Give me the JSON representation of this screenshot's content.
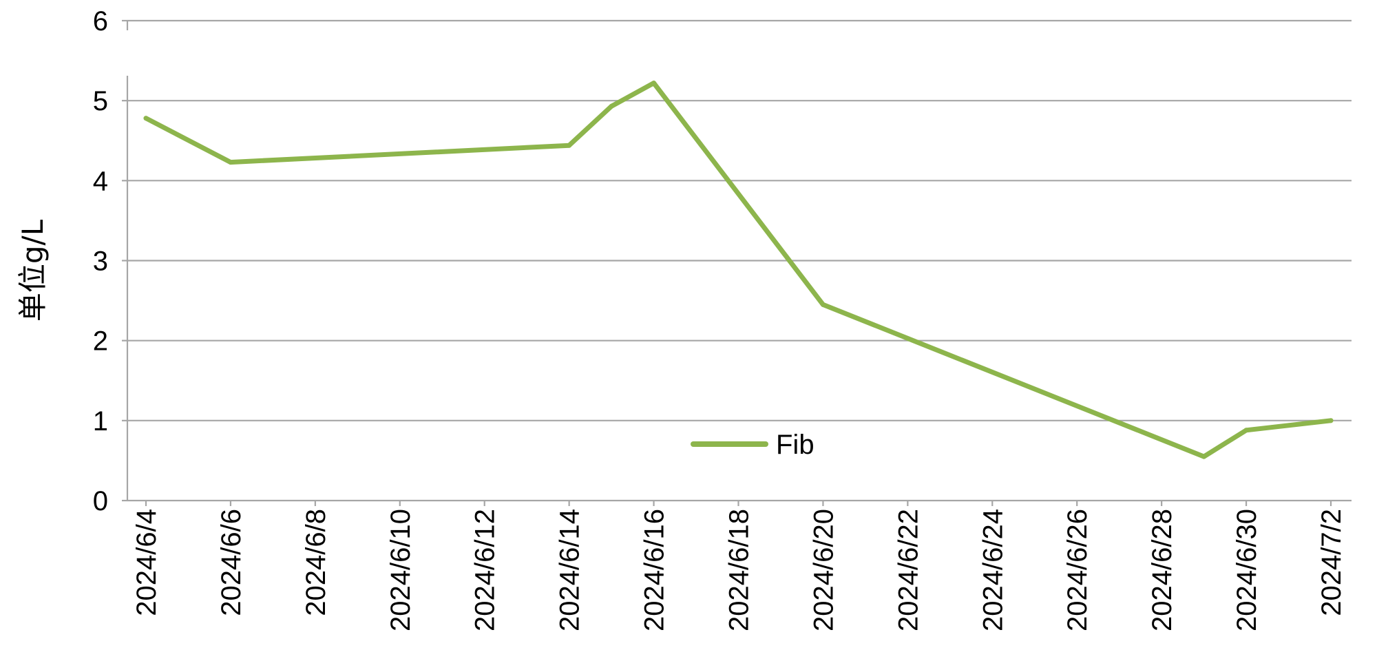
{
  "chart_data": {
    "type": "line",
    "ylabel": "单位g/L",
    "xlabel": "",
    "ylim": [
      0,
      6
    ],
    "y_ticks": [
      "0",
      "1",
      "2",
      "3",
      "4",
      "5",
      "6"
    ],
    "x_ticks": [
      "2024/6/4",
      "2024/6/6",
      "2024/6/8",
      "2024/6/10",
      "2024/6/12",
      "2024/6/14",
      "2024/6/16",
      "2024/6/18",
      "2024/6/20",
      "2024/6/22",
      "2024/6/24",
      "2024/6/26",
      "2024/6/28",
      "2024/6/30",
      "2024/7/2"
    ],
    "xlim": [
      "2024/6/4",
      "2024/7/2"
    ],
    "grid": "horizontal",
    "legend_position": "bottom-center",
    "series": [
      {
        "name": "Fib",
        "color": "#8db54c",
        "points": [
          {
            "x": "2024/6/4",
            "y": 4.78
          },
          {
            "x": "2024/6/6",
            "y": 4.23
          },
          {
            "x": "2024/6/14",
            "y": 4.44
          },
          {
            "x": "2024/6/15",
            "y": 4.93
          },
          {
            "x": "2024/6/16",
            "y": 5.22
          },
          {
            "x": "2024/6/20",
            "y": 2.45
          },
          {
            "x": "2024/6/29",
            "y": 0.55
          },
          {
            "x": "2024/6/30",
            "y": 0.88
          },
          {
            "x": "2024/7/2",
            "y": 1.0
          }
        ]
      }
    ]
  }
}
